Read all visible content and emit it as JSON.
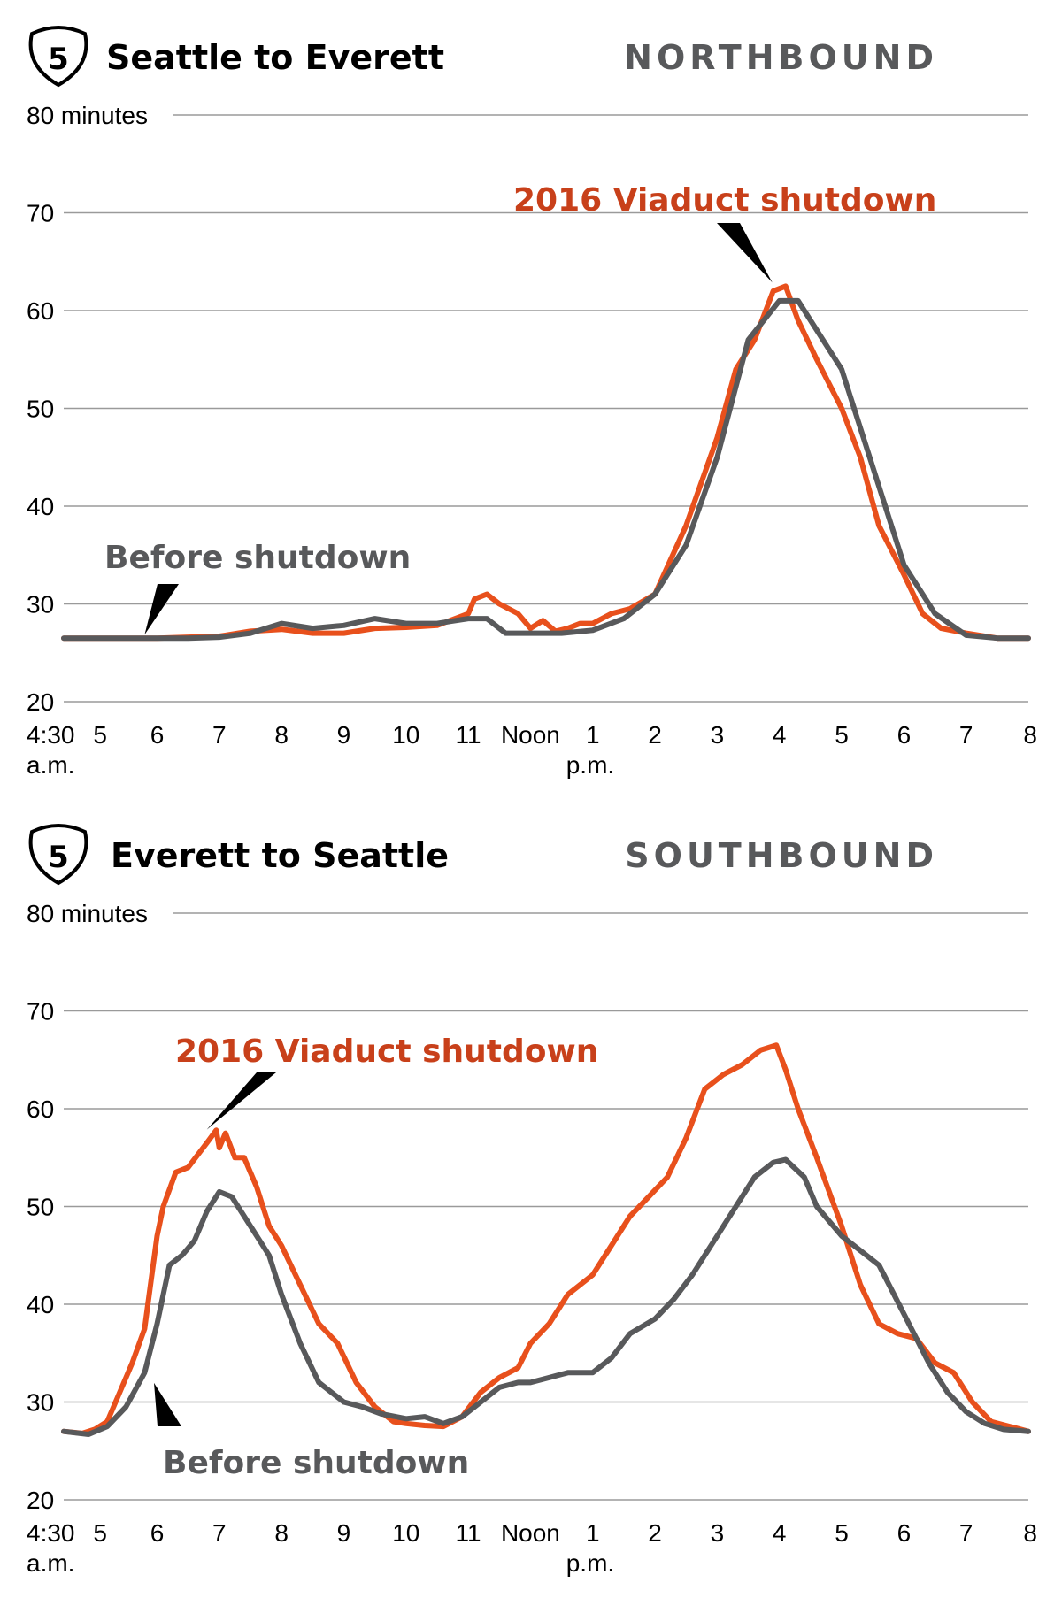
{
  "colors": {
    "before": "#58595b",
    "viaduct": "#e8501c",
    "viaduct_label": "#c8401a",
    "direction": "#58595b",
    "grid": "#9a9a9a"
  },
  "chart_data": [
    {
      "type": "line",
      "shield": "5",
      "title": "Seattle to Everett",
      "direction": "NORTHBOUND",
      "yunit_label": "80 minutes",
      "ylim": [
        20,
        80
      ],
      "yticks": [
        "80 minutes",
        "70",
        "60",
        "50",
        "40",
        "30",
        "20"
      ],
      "xlim": [
        4.5,
        20
      ],
      "xticks": [
        {
          "x": 4.5,
          "label": "4:30",
          "sublabel": "a.m."
        },
        {
          "x": 5,
          "label": "5"
        },
        {
          "x": 6,
          "label": "6"
        },
        {
          "x": 7,
          "label": "7"
        },
        {
          "x": 8,
          "label": "8"
        },
        {
          "x": 9,
          "label": "9"
        },
        {
          "x": 10,
          "label": "10"
        },
        {
          "x": 11,
          "label": "11"
        },
        {
          "x": 12,
          "label": "Noon"
        },
        {
          "x": 13,
          "label": "1",
          "sublabel": "p.m."
        },
        {
          "x": 14,
          "label": "2"
        },
        {
          "x": 15,
          "label": "3"
        },
        {
          "x": 16,
          "label": "4"
        },
        {
          "x": 17,
          "label": "5"
        },
        {
          "x": 18,
          "label": "6"
        },
        {
          "x": 19,
          "label": "7"
        },
        {
          "x": 20,
          "label": "8"
        }
      ],
      "grid": true,
      "annotations": [
        {
          "series": "viaduct",
          "text": "2016 Viaduct shutdown",
          "at": [
            16.0,
            62.5
          ]
        },
        {
          "series": "before",
          "text": "Before shutdown",
          "at": [
            5.8,
            26.5
          ]
        }
      ],
      "series": [
        {
          "key": "before",
          "name": "Before shutdown",
          "x": [
            4.5,
            5,
            5.5,
            6,
            6.5,
            7,
            7.5,
            8,
            8.5,
            9,
            9.5,
            10,
            10.5,
            11,
            11.3,
            11.6,
            12,
            12.5,
            13,
            13.5,
            14,
            14.5,
            15,
            15.5,
            16,
            16.3,
            16.5,
            17,
            17.5,
            18,
            18.5,
            19,
            19.5,
            20
          ],
          "y": [
            26.5,
            26.5,
            26.5,
            26.5,
            26.5,
            26.6,
            27,
            28,
            27.5,
            27.8,
            28.5,
            28,
            28,
            28.5,
            28.5,
            27,
            27,
            27,
            27.3,
            28.5,
            31,
            36,
            45,
            57,
            61,
            61,
            59,
            54,
            44,
            34,
            29,
            26.8,
            26.5,
            26.5
          ]
        },
        {
          "key": "viaduct",
          "name": "2016 Viaduct shutdown",
          "x": [
            4.5,
            5,
            5.5,
            6,
            6.5,
            7,
            7.5,
            8,
            8.5,
            9,
            9.5,
            10,
            10.5,
            11,
            11.1,
            11.3,
            11.5,
            11.8,
            12,
            12.2,
            12.4,
            12.6,
            12.8,
            13,
            13.3,
            13.6,
            14,
            14.5,
            15,
            15.3,
            15.6,
            15.9,
            16.1,
            16.3,
            16.6,
            17,
            17.3,
            17.6,
            18,
            18.3,
            18.6,
            19,
            19.5,
            20
          ],
          "y": [
            26.5,
            26.5,
            26.5,
            26.5,
            26.6,
            26.7,
            27.2,
            27.4,
            27,
            27,
            27.5,
            27.6,
            27.8,
            29,
            30.5,
            31,
            30,
            29,
            27.5,
            28.3,
            27.2,
            27.5,
            28,
            28,
            29,
            29.5,
            31,
            38,
            47,
            54,
            57,
            62,
            62.5,
            59,
            55,
            50,
            45,
            38,
            33,
            29,
            27.5,
            27,
            26.5,
            26.5
          ]
        }
      ]
    },
    {
      "type": "line",
      "shield": "5",
      "title": "Everett to Seattle",
      "direction": "SOUTHBOUND",
      "yunit_label": "80 minutes",
      "ylim": [
        20,
        80
      ],
      "yticks": [
        "80 minutes",
        "70",
        "60",
        "50",
        "40",
        "30",
        "20"
      ],
      "xlim": [
        4.5,
        20
      ],
      "xticks": [
        {
          "x": 4.5,
          "label": "4:30",
          "sublabel": "a.m."
        },
        {
          "x": 5,
          "label": "5"
        },
        {
          "x": 6,
          "label": "6"
        },
        {
          "x": 7,
          "label": "7"
        },
        {
          "x": 8,
          "label": "8"
        },
        {
          "x": 9,
          "label": "9"
        },
        {
          "x": 10,
          "label": "10"
        },
        {
          "x": 11,
          "label": "11"
        },
        {
          "x": 12,
          "label": "Noon"
        },
        {
          "x": 13,
          "label": "1",
          "sublabel": "p.m."
        },
        {
          "x": 14,
          "label": "2"
        },
        {
          "x": 15,
          "label": "3"
        },
        {
          "x": 16,
          "label": "4"
        },
        {
          "x": 17,
          "label": "5"
        },
        {
          "x": 18,
          "label": "6"
        },
        {
          "x": 19,
          "label": "7"
        },
        {
          "x": 20,
          "label": "8"
        }
      ],
      "grid": true,
      "annotations": [
        {
          "series": "viaduct",
          "text": "2016 Viaduct shutdown",
          "at": [
            6.8,
            57.5
          ]
        },
        {
          "series": "before",
          "text": "Before shutdown",
          "at": [
            5.95,
            32.5
          ]
        }
      ],
      "series": [
        {
          "key": "before",
          "name": "Before shutdown",
          "x": [
            4.5,
            4.9,
            5.2,
            5.5,
            5.8,
            6,
            6.2,
            6.4,
            6.6,
            6.8,
            7,
            7.2,
            7.5,
            7.8,
            8,
            8.3,
            8.6,
            9,
            9.3,
            9.6,
            10,
            10.3,
            10.6,
            10.9,
            11.2,
            11.5,
            11.8,
            12,
            12.3,
            12.6,
            13,
            13.3,
            13.6,
            14,
            14.3,
            14.6,
            15,
            15.3,
            15.6,
            15.9,
            16.1,
            16.4,
            16.6,
            17,
            17.3,
            17.6,
            18,
            18.4,
            18.7,
            19,
            19.3,
            19.6,
            20
          ],
          "y": [
            27,
            26.7,
            27.5,
            29.5,
            33,
            38,
            44,
            45,
            46.5,
            49.5,
            51.5,
            51,
            48,
            45,
            41,
            36,
            32,
            30,
            29.5,
            28.8,
            28.3,
            28.5,
            27.8,
            28.5,
            30,
            31.5,
            32,
            32,
            32.5,
            33,
            33,
            34.5,
            37,
            38.5,
            40.5,
            43,
            47,
            50,
            53,
            54.5,
            54.8,
            53,
            50,
            47,
            45.5,
            44,
            39,
            34,
            31,
            29,
            27.8,
            27.2,
            27
          ]
        },
        {
          "key": "viaduct",
          "name": "2016 Viaduct shutdown",
          "x": [
            4.5,
            4.8,
            5,
            5.2,
            5.4,
            5.6,
            5.8,
            6,
            6.1,
            6.3,
            6.5,
            6.8,
            6.95,
            7,
            7.1,
            7.25,
            7.4,
            7.6,
            7.8,
            8,
            8.3,
            8.6,
            8.9,
            9.2,
            9.5,
            9.8,
            10,
            10.3,
            10.6,
            10.9,
            11.2,
            11.5,
            11.8,
            12,
            12.3,
            12.6,
            13,
            13.3,
            13.6,
            13.9,
            14.2,
            14.5,
            14.8,
            15.1,
            15.4,
            15.7,
            15.95,
            16.1,
            16.3,
            16.6,
            17,
            17.3,
            17.6,
            17.9,
            18.2,
            18.5,
            18.8,
            19.1,
            19.4,
            19.7,
            20
          ],
          "y": [
            27,
            26.8,
            27.2,
            28,
            31,
            34,
            37.5,
            47,
            50,
            53.5,
            54,
            56.5,
            57.8,
            56,
            57.5,
            55,
            55,
            52,
            48,
            46,
            42,
            38,
            36,
            32,
            29.5,
            28,
            27.8,
            27.6,
            27.5,
            28.5,
            31,
            32.5,
            33.5,
            36,
            38,
            41,
            43,
            46,
            49,
            51,
            53,
            57,
            62,
            63.5,
            64.5,
            66,
            66.5,
            64,
            60,
            55,
            48,
            42,
            38,
            37,
            36.5,
            34,
            33,
            30,
            28,
            27.5,
            27
          ]
        }
      ]
    }
  ]
}
